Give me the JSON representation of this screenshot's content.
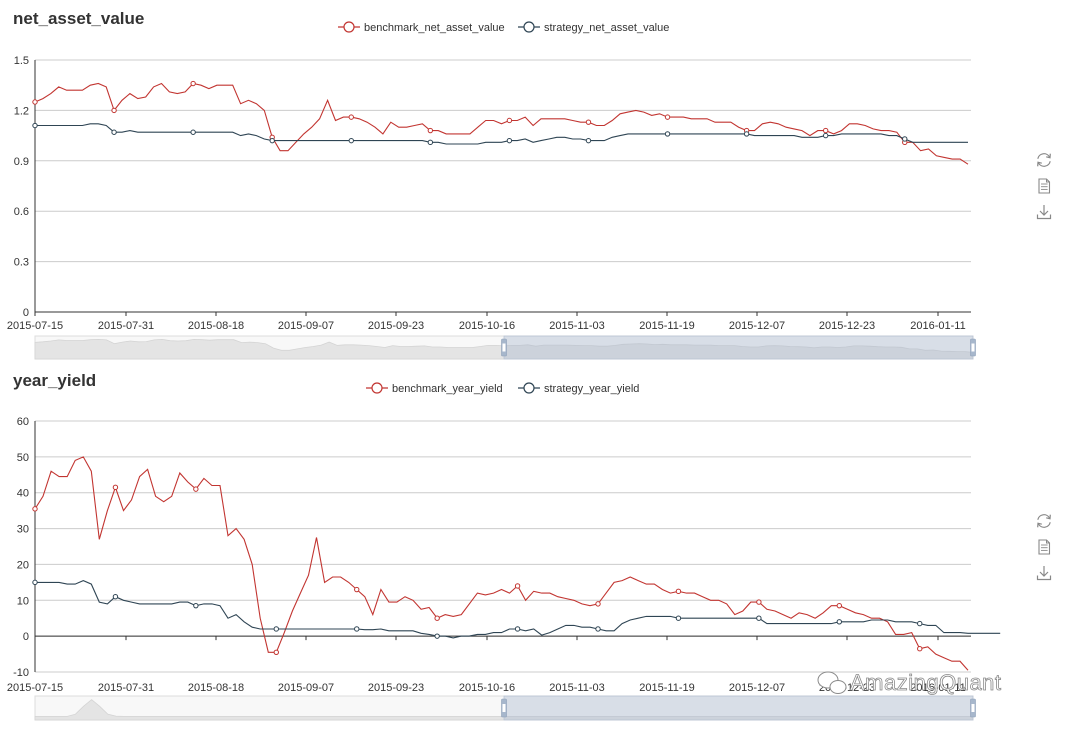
{
  "chart_data": [
    {
      "type": "line",
      "title": "net_asset_value",
      "x_ticks": [
        "2015-07-15",
        "2015-07-31",
        "2015-08-18",
        "2015-09-07",
        "2015-09-23",
        "2015-10-16",
        "2015-11-03",
        "2015-11-19",
        "2015-12-07",
        "2015-12-23",
        "2016-01-11"
      ],
      "y_ticks": [
        "0",
        "0.3",
        "0.6",
        "0.9",
        "1.2",
        "1.5"
      ],
      "ylim": [
        0,
        1.5
      ],
      "grid": true,
      "legend_position": "top-center",
      "series": [
        {
          "name": "benchmark_net_asset_value",
          "color": "#c23531",
          "values": [
            1.25,
            1.27,
            1.3,
            1.34,
            1.32,
            1.32,
            1.32,
            1.35,
            1.36,
            1.34,
            1.2,
            1.26,
            1.3,
            1.27,
            1.28,
            1.34,
            1.36,
            1.31,
            1.3,
            1.31,
            1.36,
            1.35,
            1.33,
            1.35,
            1.35,
            1.35,
            1.24,
            1.26,
            1.24,
            1.2,
            1.04,
            0.96,
            0.96,
            1.01,
            1.06,
            1.1,
            1.15,
            1.26,
            1.14,
            1.16,
            1.16,
            1.15,
            1.13,
            1.1,
            1.06,
            1.13,
            1.1,
            1.1,
            1.11,
            1.12,
            1.08,
            1.08,
            1.06,
            1.06,
            1.06,
            1.06,
            1.1,
            1.14,
            1.14,
            1.12,
            1.14,
            1.14,
            1.16,
            1.11,
            1.15,
            1.15,
            1.15,
            1.15,
            1.14,
            1.13,
            1.13,
            1.11,
            1.11,
            1.14,
            1.18,
            1.19,
            1.2,
            1.19,
            1.17,
            1.18,
            1.16,
            1.16,
            1.16,
            1.15,
            1.15,
            1.15,
            1.13,
            1.13,
            1.13,
            1.1,
            1.08,
            1.08,
            1.12,
            1.13,
            1.12,
            1.1,
            1.09,
            1.08,
            1.05,
            1.08,
            1.08,
            1.06,
            1.08,
            1.12,
            1.12,
            1.11,
            1.09,
            1.08,
            1.08,
            1.07,
            1.01,
            1.01,
            0.96,
            0.97,
            0.93,
            0.92,
            0.91,
            0.91,
            0.88
          ]
        },
        {
          "name": "strategy_net_asset_value",
          "color": "#2f4554",
          "values": [
            1.11,
            1.11,
            1.11,
            1.11,
            1.11,
            1.11,
            1.11,
            1.12,
            1.12,
            1.11,
            1.07,
            1.07,
            1.08,
            1.07,
            1.07,
            1.07,
            1.07,
            1.07,
            1.07,
            1.07,
            1.07,
            1.07,
            1.07,
            1.07,
            1.07,
            1.07,
            1.05,
            1.06,
            1.05,
            1.03,
            1.02,
            1.02,
            1.02,
            1.02,
            1.02,
            1.02,
            1.02,
            1.02,
            1.02,
            1.02,
            1.02,
            1.02,
            1.02,
            1.02,
            1.02,
            1.02,
            1.02,
            1.02,
            1.02,
            1.02,
            1.01,
            1.01,
            1.0,
            1.0,
            1.0,
            1.0,
            1.0,
            1.01,
            1.01,
            1.01,
            1.02,
            1.02,
            1.03,
            1.01,
            1.02,
            1.03,
            1.04,
            1.04,
            1.03,
            1.03,
            1.02,
            1.02,
            1.02,
            1.04,
            1.05,
            1.06,
            1.06,
            1.06,
            1.06,
            1.06,
            1.06,
            1.06,
            1.06,
            1.06,
            1.06,
            1.06,
            1.06,
            1.06,
            1.06,
            1.06,
            1.06,
            1.05,
            1.05,
            1.05,
            1.05,
            1.05,
            1.05,
            1.04,
            1.04,
            1.04,
            1.05,
            1.05,
            1.06,
            1.06,
            1.06,
            1.06,
            1.06,
            1.06,
            1.05,
            1.05,
            1.03,
            1.01,
            1.01,
            1.01,
            1.01,
            1.01,
            1.01,
            1.01,
            1.01
          ]
        }
      ]
    },
    {
      "type": "line",
      "title": "year_yield",
      "x_ticks": [
        "2015-07-15",
        "2015-07-31",
        "2015-08-18",
        "2015-09-07",
        "2015-09-23",
        "2015-10-16",
        "2015-11-03",
        "2015-11-19",
        "2015-12-07",
        "2015-12-23",
        "2016-01-11"
      ],
      "y_ticks": [
        "-10",
        "0",
        "10",
        "20",
        "30",
        "40",
        "50",
        "60"
      ],
      "ylim": [
        -10,
        60
      ],
      "grid": true,
      "legend_position": "top-center",
      "series": [
        {
          "name": "benchmark_year_yield",
          "color": "#c23531",
          "values": [
            35.5,
            39,
            46,
            44.5,
            44.5,
            49,
            50,
            46,
            27,
            35,
            41.5,
            35,
            38,
            44.5,
            46.5,
            39,
            37.5,
            39,
            45.5,
            43,
            41,
            44,
            42,
            42,
            28,
            30,
            27,
            20,
            5,
            -4.5,
            -4.5,
            1,
            7,
            12,
            17,
            27.5,
            15,
            16.5,
            16.5,
            15,
            13,
            11,
            6,
            13,
            9.5,
            9.5,
            11,
            10,
            7.5,
            8,
            5,
            6,
            5.5,
            6,
            9,
            12,
            11.5,
            12,
            13,
            12,
            14,
            10,
            12.5,
            12,
            12,
            11,
            10.5,
            10,
            9,
            8.5,
            9,
            12,
            15,
            15.5,
            16.5,
            15.5,
            14.5,
            14.5,
            13,
            12,
            12.5,
            12,
            12,
            11,
            10,
            10,
            9,
            6,
            7,
            9.5,
            9.5,
            7.5,
            7,
            6,
            5,
            6.5,
            6,
            5,
            6.5,
            8.5,
            8.5,
            7.5,
            6.5,
            6,
            5,
            5,
            4,
            0.5,
            0.5,
            1,
            -3.5,
            -3,
            -5,
            -6,
            -7,
            -7,
            -9.5
          ]
        },
        {
          "name": "strategy_year_yield",
          "color": "#2f4554",
          "values": [
            15,
            15,
            15,
            15,
            14.5,
            14.5,
            15.5,
            14.5,
            9.5,
            9,
            11,
            10,
            9.5,
            9,
            9,
            9,
            9,
            9,
            9.5,
            9.5,
            8.5,
            9,
            9,
            8.5,
            5,
            6,
            4,
            2.5,
            2,
            2,
            2,
            2,
            2,
            2,
            2,
            2,
            2,
            2,
            2,
            2,
            2,
            1.8,
            1.8,
            2,
            1.5,
            1.5,
            1.5,
            1.5,
            0.8,
            0.5,
            0,
            0,
            -0.5,
            0,
            0,
            0.5,
            0.5,
            1,
            1,
            2,
            2,
            1.5,
            2,
            0.3,
            1,
            2,
            3,
            3,
            2.5,
            2.5,
            2,
            1.5,
            1.5,
            3.5,
            4.5,
            5,
            5.5,
            5.5,
            5.5,
            5.5,
            5,
            5,
            5,
            5,
            5,
            5,
            5,
            5,
            5,
            5,
            5,
            3.5,
            3.5,
            3.5,
            3.5,
            3.5,
            3.5,
            3.5,
            3.5,
            3.5,
            4,
            4,
            4,
            4,
            4.5,
            4.5,
            4.5,
            4,
            4,
            4,
            3.5,
            3,
            3,
            1,
            1,
            1,
            0.8,
            0.8,
            0.8,
            0.8,
            0.8
          ]
        }
      ]
    }
  ],
  "toolbox": {
    "restore_icon": "refresh-icon",
    "dataview_icon": "document-icon",
    "save_icon": "download-icon"
  },
  "watermark": {
    "text": "AmazingQuant",
    "icon": "wechat-icon"
  }
}
